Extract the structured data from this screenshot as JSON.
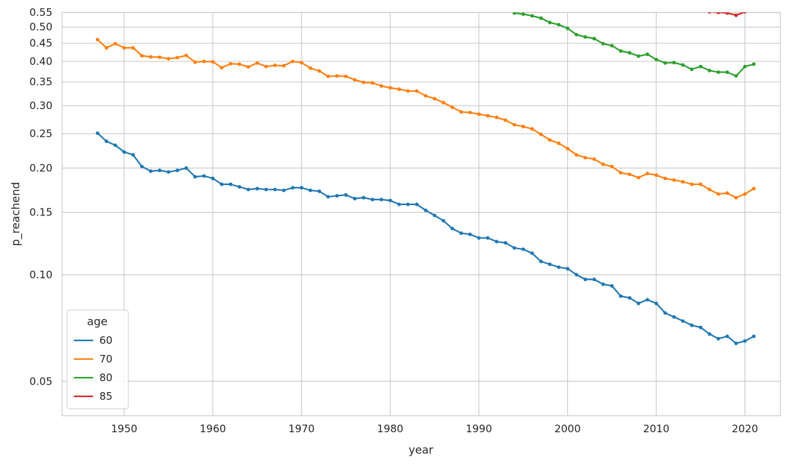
{
  "chart_data": {
    "type": "line",
    "xlabel": "year",
    "ylabel": "p_reachend",
    "xlim": [
      1943,
      2024
    ],
    "ylim": [
      0.04,
      0.55
    ],
    "yscale": "log",
    "grid": true,
    "x_ticks": [
      1950,
      1960,
      1970,
      1980,
      1990,
      2000,
      2010,
      2020
    ],
    "y_ticks": [
      0.05,
      0.1,
      0.15,
      0.2,
      0.25,
      0.3,
      0.35,
      0.4,
      0.45,
      0.5,
      0.55
    ],
    "x_tick_labels": [
      "1950",
      "1960",
      "1970",
      "1980",
      "1990",
      "2000",
      "2010",
      "2020"
    ],
    "y_tick_labels": [
      "0.05",
      "0.10",
      "0.15",
      "0.20",
      "0.25",
      "0.30",
      "0.35",
      "0.40",
      "0.45",
      "0.50",
      "0.55"
    ],
    "legend": {
      "title": "age",
      "position": "lower-left"
    },
    "series": [
      {
        "name": "60",
        "color": "#1f77b4",
        "x": [
          1947,
          1948,
          1949,
          1950,
          1951,
          1952,
          1953,
          1954,
          1955,
          1956,
          1957,
          1958,
          1959,
          1960,
          1961,
          1962,
          1963,
          1964,
          1965,
          1966,
          1967,
          1968,
          1969,
          1970,
          1971,
          1972,
          1973,
          1974,
          1975,
          1976,
          1977,
          1978,
          1979,
          1980,
          1981,
          1982,
          1983,
          1984,
          1985,
          1986,
          1987,
          1988,
          1989,
          1990,
          1991,
          1992,
          1993,
          1994,
          1995,
          1996,
          1997,
          1998,
          1999,
          2000,
          2001,
          2002,
          2003,
          2004,
          2005,
          2006,
          2007,
          2008,
          2009,
          2010,
          2011,
          2012,
          2013,
          2014,
          2015,
          2016,
          2017,
          2018,
          2019,
          2020,
          2021
        ],
        "y": [
          0.251,
          0.238,
          0.232,
          0.222,
          0.218,
          0.202,
          0.196,
          0.197,
          0.195,
          0.197,
          0.2,
          0.189,
          0.19,
          0.187,
          0.18,
          0.18,
          0.177,
          0.174,
          0.175,
          0.174,
          0.174,
          0.173,
          0.176,
          0.176,
          0.173,
          0.172,
          0.166,
          0.167,
          0.168,
          0.164,
          0.165,
          0.163,
          0.163,
          0.162,
          0.158,
          0.158,
          0.158,
          0.152,
          0.147,
          0.142,
          0.135,
          0.131,
          0.13,
          0.127,
          0.127,
          0.124,
          0.123,
          0.119,
          0.118,
          0.115,
          0.109,
          0.107,
          0.105,
          0.104,
          0.1,
          0.097,
          0.097,
          0.094,
          0.093,
          0.087,
          0.086,
          0.083,
          0.085,
          0.083,
          0.078,
          0.076,
          0.074,
          0.072,
          0.071,
          0.068,
          0.066,
          0.067,
          0.064,
          0.065,
          0.067
        ]
      },
      {
        "name": "70",
        "color": "#ff7f0e",
        "x": [
          1947,
          1948,
          1949,
          1950,
          1951,
          1952,
          1953,
          1954,
          1955,
          1956,
          1957,
          1958,
          1959,
          1960,
          1961,
          1962,
          1963,
          1964,
          1965,
          1966,
          1967,
          1968,
          1969,
          1970,
          1971,
          1972,
          1973,
          1974,
          1975,
          1976,
          1977,
          1978,
          1979,
          1980,
          1981,
          1982,
          1983,
          1984,
          1985,
          1986,
          1987,
          1988,
          1989,
          1990,
          1991,
          1992,
          1993,
          1994,
          1995,
          1996,
          1997,
          1998,
          1999,
          2000,
          2001,
          2002,
          2003,
          2004,
          2005,
          2006,
          2007,
          2008,
          2009,
          2010,
          2011,
          2012,
          2013,
          2014,
          2015,
          2016,
          2017,
          2018,
          2019,
          2020,
          2021
        ],
        "y": [
          0.461,
          0.437,
          0.449,
          0.437,
          0.437,
          0.415,
          0.412,
          0.411,
          0.407,
          0.41,
          0.416,
          0.398,
          0.4,
          0.399,
          0.384,
          0.394,
          0.393,
          0.386,
          0.396,
          0.387,
          0.39,
          0.389,
          0.4,
          0.397,
          0.383,
          0.376,
          0.363,
          0.364,
          0.363,
          0.355,
          0.349,
          0.348,
          0.341,
          0.337,
          0.334,
          0.33,
          0.33,
          0.32,
          0.314,
          0.306,
          0.297,
          0.288,
          0.287,
          0.284,
          0.281,
          0.278,
          0.273,
          0.265,
          0.262,
          0.258,
          0.249,
          0.24,
          0.235,
          0.227,
          0.218,
          0.214,
          0.212,
          0.205,
          0.202,
          0.194,
          0.192,
          0.188,
          0.193,
          0.191,
          0.187,
          0.185,
          0.183,
          0.18,
          0.18,
          0.174,
          0.169,
          0.17,
          0.165,
          0.169,
          0.175
        ]
      },
      {
        "name": "80",
        "color": "#2ca02c",
        "x": [
          1994,
          1995,
          1996,
          1997,
          1998,
          1999,
          2000,
          2001,
          2002,
          2003,
          2004,
          2005,
          2006,
          2007,
          2008,
          2009,
          2010,
          2011,
          2012,
          2013,
          2014,
          2015,
          2016,
          2017,
          2018,
          2019,
          2020,
          2021
        ],
        "y": [
          0.548,
          0.544,
          0.538,
          0.53,
          0.515,
          0.508,
          0.496,
          0.476,
          0.469,
          0.464,
          0.449,
          0.443,
          0.428,
          0.423,
          0.414,
          0.419,
          0.405,
          0.396,
          0.397,
          0.391,
          0.38,
          0.387,
          0.377,
          0.373,
          0.373,
          0.364,
          0.387,
          0.393
        ]
      },
      {
        "name": "85",
        "color": "#d62728",
        "x": [
          2016,
          2017,
          2018,
          2019,
          2020
        ],
        "y": [
          0.552,
          0.55,
          0.548,
          0.54,
          0.552
        ]
      }
    ]
  }
}
